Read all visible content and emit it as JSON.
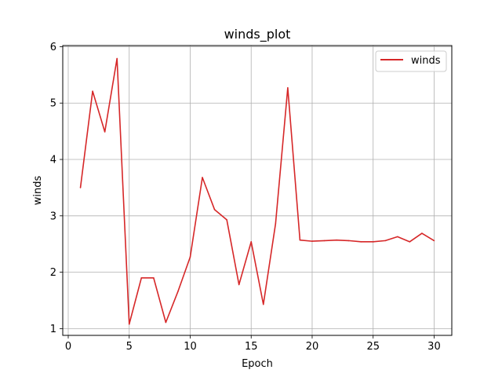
{
  "chart_data": {
    "type": "line",
    "title": "winds_plot",
    "xlabel": "Epoch",
    "ylabel": "winds",
    "xlim": [
      -0.45,
      31.45
    ],
    "ylim": [
      0.88,
      6.02
    ],
    "xticks": [
      0,
      5,
      10,
      15,
      20,
      25,
      30
    ],
    "yticks": [
      1,
      2,
      3,
      4,
      5,
      6
    ],
    "grid": true,
    "legend_position": "top-right",
    "series": [
      {
        "name": "winds",
        "color": "#d62728",
        "x": [
          1,
          2,
          3,
          4,
          5,
          6,
          7,
          8,
          9,
          10,
          11,
          12,
          13,
          14,
          15,
          16,
          17,
          18,
          19,
          20,
          21,
          22,
          23,
          24,
          25,
          26,
          27,
          28,
          29,
          30
        ],
        "values": [
          3.5,
          5.21,
          4.49,
          5.79,
          1.08,
          1.9,
          1.9,
          1.11,
          1.66,
          2.27,
          3.68,
          3.11,
          2.93,
          1.78,
          2.54,
          1.43,
          2.86,
          5.27,
          2.57,
          2.55,
          2.56,
          2.57,
          2.56,
          2.54,
          2.54,
          2.56,
          2.63,
          2.54,
          2.69,
          2.56
        ]
      }
    ]
  }
}
